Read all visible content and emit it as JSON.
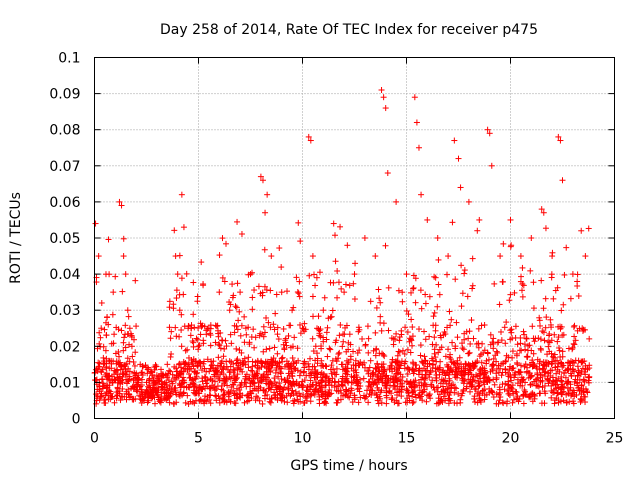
{
  "chart_data": {
    "type": "scatter",
    "title": "Day 258 of 2014, Rate Of TEC Index for receiver p475",
    "xlabel": "GPS time / hours",
    "ylabel": "ROTI / TECUs",
    "xlim": [
      0,
      25
    ],
    "ylim": [
      0,
      0.1
    ],
    "xticks": [
      0,
      5,
      10,
      15,
      20,
      25
    ],
    "yticks": [
      0,
      0.01,
      0.02,
      0.03,
      0.04,
      0.05,
      0.06,
      0.07,
      0.08,
      0.09,
      0.1
    ],
    "xtick_labels": [
      "0",
      "5",
      "10",
      "15",
      "20",
      "25"
    ],
    "ytick_labels": [
      "0",
      "0.01",
      "0.02",
      "0.03",
      "0.04",
      "0.05",
      "0.06",
      "0.07",
      "0.08",
      "0.09",
      "0.1"
    ],
    "grid": true,
    "marker": "+",
    "color": "#ff0000",
    "x_range_hours": [
      0,
      23.8
    ],
    "series": [
      {
        "x": [
          0.05,
          0.2,
          0.35,
          0.6,
          0.9,
          1.2,
          1.3,
          1.4,
          1.5,
          1.6,
          1.7,
          1.8,
          2.1,
          2.5,
          3.0,
          3.5,
          3.9,
          4.0,
          4.1,
          4.2,
          4.3,
          4.5,
          5.0,
          5.5,
          6.0,
          6.5,
          7.0,
          7.5,
          8.0,
          8.1,
          8.2,
          8.3,
          8.5,
          9.0,
          9.5,
          10.0,
          10.3,
          10.4,
          10.5,
          11.0,
          11.5,
          12.0,
          12.5,
          13.0,
          13.5,
          13.8,
          13.9,
          14.0,
          14.1,
          14.5,
          15.0,
          15.4,
          15.5,
          15.6,
          15.7,
          16.0,
          16.5,
          17.0,
          17.3,
          17.5,
          17.6,
          18.0,
          18.5,
          18.9,
          19.0,
          19.1,
          19.5,
          20.0,
          20.5,
          21.0,
          21.5,
          21.6,
          22.0,
          22.3,
          22.4,
          22.5,
          23.0,
          23.4,
          23.6
        ],
        "y": [
          0.054,
          0.045,
          0.032,
          0.028,
          0.035,
          0.06,
          0.059,
          0.045,
          0.04,
          0.03,
          0.025,
          0.02,
          0.012,
          0.01,
          0.012,
          0.015,
          0.045,
          0.04,
          0.03,
          0.062,
          0.053,
          0.025,
          0.02,
          0.025,
          0.035,
          0.03,
          0.035,
          0.04,
          0.067,
          0.066,
          0.057,
          0.062,
          0.045,
          0.035,
          0.03,
          0.025,
          0.078,
          0.077,
          0.045,
          0.03,
          0.054,
          0.035,
          0.04,
          0.05,
          0.045,
          0.091,
          0.089,
          0.086,
          0.068,
          0.06,
          0.04,
          0.089,
          0.082,
          0.075,
          0.062,
          0.055,
          0.05,
          0.045,
          0.077,
          0.072,
          0.064,
          0.06,
          0.055,
          0.08,
          0.079,
          0.07,
          0.045,
          0.055,
          0.045,
          0.05,
          0.058,
          0.057,
          0.045,
          0.078,
          0.077,
          0.066,
          0.04,
          0.052,
          0.045
        ]
      }
    ]
  }
}
